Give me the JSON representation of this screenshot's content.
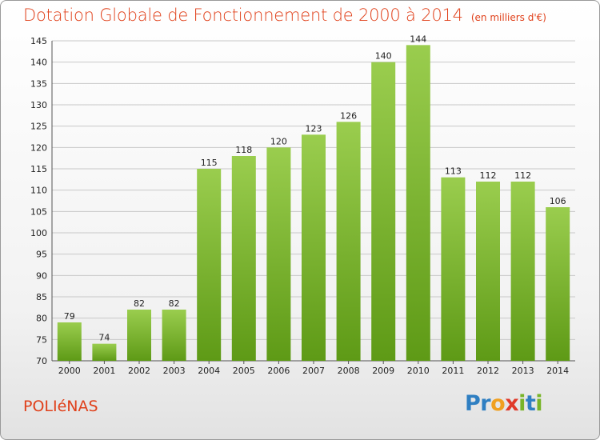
{
  "header": {
    "title": "Dotation Globale de Fonctionnement de 2000 à 2014",
    "unit": "(en milliers d'€)"
  },
  "commune": "POLIéNAS",
  "brand": {
    "name": "Proxiti",
    "letters": [
      "P",
      "r",
      "o",
      "x",
      "i",
      "t",
      "i"
    ]
  },
  "colors": {
    "title": "#e0401a",
    "bar_top": "#9acd4e",
    "bar_bottom": "#5e9a16",
    "grid": "#c8c8c8",
    "brand": [
      "#2f7fc2",
      "#2f7fc2",
      "#f0a020",
      "#e03a2a",
      "#78b428",
      "#2f7fc2",
      "#78b428"
    ]
  },
  "chart_data": {
    "type": "bar",
    "title": "Dotation Globale de Fonctionnement de 2000 à 2014",
    "subtitle": "(en milliers d'€)",
    "categories": [
      "2000",
      "2001",
      "2002",
      "2003",
      "2004",
      "2005",
      "2006",
      "2007",
      "2008",
      "2009",
      "2010",
      "2011",
      "2012",
      "2013",
      "2014"
    ],
    "values": [
      79,
      74,
      82,
      82,
      115,
      118,
      120,
      123,
      126,
      140,
      144,
      113,
      112,
      112,
      106
    ],
    "ylim": [
      70,
      145
    ],
    "yticks": [
      70,
      75,
      80,
      85,
      90,
      95,
      100,
      105,
      110,
      115,
      120,
      125,
      130,
      135,
      140,
      145
    ],
    "xlabel": "",
    "ylabel": "",
    "grid": true,
    "data_labels": true
  }
}
